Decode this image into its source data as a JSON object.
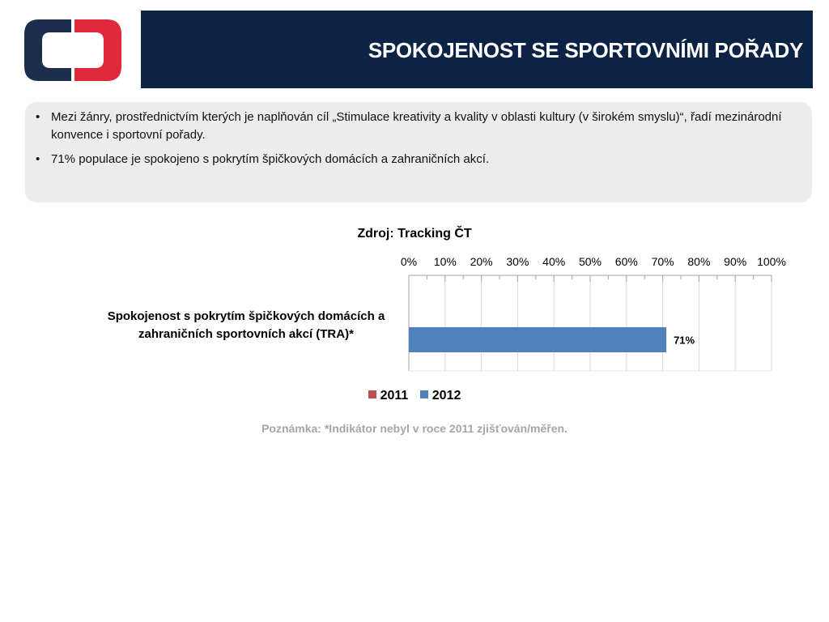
{
  "header": {
    "title": "SPOKOJENOST SE SPORTOVNÍMI POŘADY",
    "background_color": "#0d2346"
  },
  "logo": {
    "icon": "ct-logo-icon",
    "colors": {
      "left": "#1c2e4e",
      "right": "#e0293a"
    }
  },
  "bullets": [
    "Mezi žánry, prostřednictvím kterých je naplňován cíl „Stimulace kreativity a kvality v oblasti kultury (v širokém smyslu)“, řadí mezinárodní konvence i sportovní pořady.",
    "71% populace je spokojeno s pokrytím špičkových domácích a zahraničních akcí."
  ],
  "chart_data": {
    "type": "bar",
    "orientation": "horizontal",
    "source": "Zdroj: Tracking ČT",
    "categories": [
      "Spokojenost s pokrytím špičkových domácích a zahraničních sportovních akcí (TRA)*"
    ],
    "series": [
      {
        "name": "2011",
        "color": "#c0504d",
        "values": [
          null
        ]
      },
      {
        "name": "2012",
        "color": "#4f81bd",
        "values": [
          71
        ]
      }
    ],
    "data_labels": [
      "71%"
    ],
    "x_ticks": [
      "0%",
      "10%",
      "20%",
      "30%",
      "40%",
      "50%",
      "60%",
      "70%",
      "80%",
      "90%",
      "100%"
    ],
    "xlim": [
      0,
      100
    ],
    "x_axis_position": "top",
    "grid": true,
    "legend_position": "bottom"
  },
  "note": "Poznámka: *Indikátor nebyl v roce 2011 zjišťován/měřen."
}
